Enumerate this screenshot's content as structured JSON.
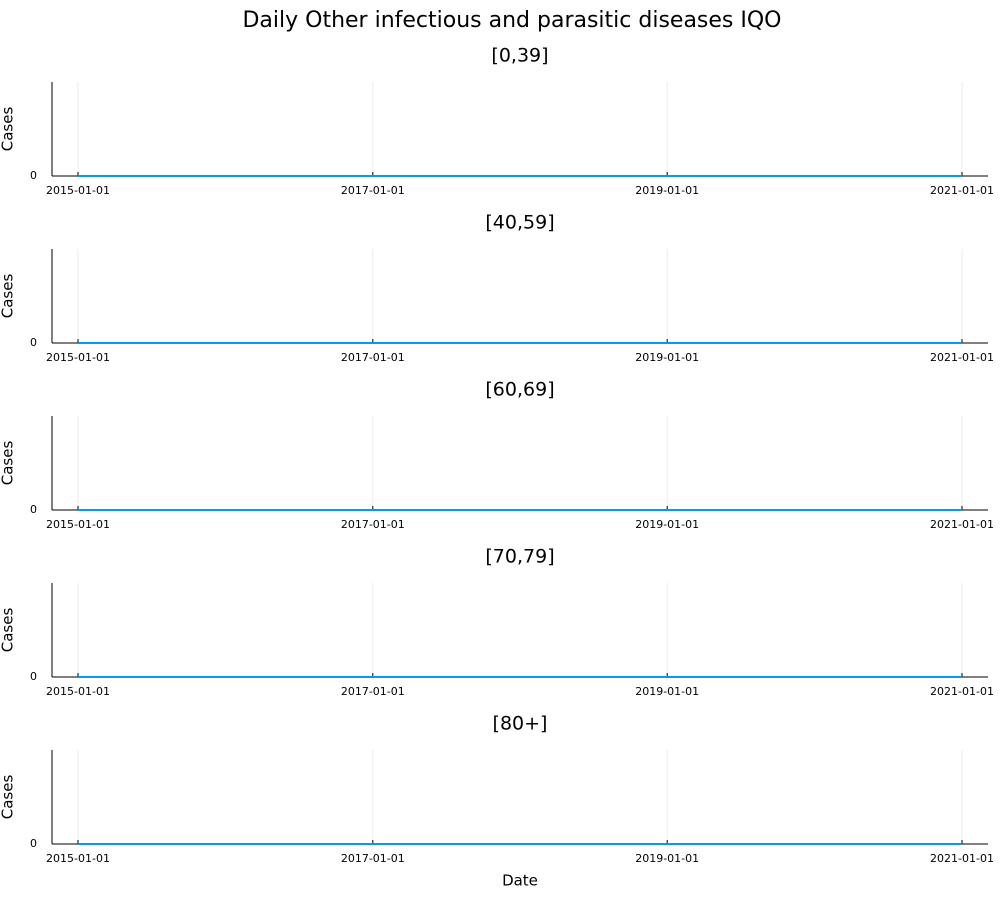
{
  "title": "Daily Other infectious and parasitic diseases IQO",
  "colors": {
    "series": "#009AFA",
    "axis": "#000000"
  },
  "chart_data": [
    {
      "type": "line",
      "title": "[0,39]",
      "xlabel": "",
      "ylabel": "Cases",
      "x_ticks": [
        "2015-01-01",
        "2017-01-01",
        "2019-01-01",
        "2021-01-01"
      ],
      "y_ticks": [
        0
      ],
      "xlim": [
        "2015-01-01",
        "2021-01-01"
      ],
      "ylim": [
        0,
        1
      ],
      "grid": true,
      "series": [
        {
          "x": [
            "2015-01-01",
            "2021-01-01"
          ],
          "values": [
            0,
            0
          ]
        }
      ]
    },
    {
      "type": "line",
      "title": "[40,59]",
      "xlabel": "",
      "ylabel": "Cases",
      "x_ticks": [
        "2015-01-01",
        "2017-01-01",
        "2019-01-01",
        "2021-01-01"
      ],
      "y_ticks": [
        0
      ],
      "xlim": [
        "2015-01-01",
        "2021-01-01"
      ],
      "ylim": [
        0,
        1
      ],
      "grid": true,
      "series": [
        {
          "x": [
            "2015-01-01",
            "2021-01-01"
          ],
          "values": [
            0,
            0
          ]
        }
      ]
    },
    {
      "type": "line",
      "title": "[60,69]",
      "xlabel": "",
      "ylabel": "Cases",
      "x_ticks": [
        "2015-01-01",
        "2017-01-01",
        "2019-01-01",
        "2021-01-01"
      ],
      "y_ticks": [
        0
      ],
      "xlim": [
        "2015-01-01",
        "2021-01-01"
      ],
      "ylim": [
        0,
        1
      ],
      "grid": true,
      "series": [
        {
          "x": [
            "2015-01-01",
            "2021-01-01"
          ],
          "values": [
            0,
            0
          ]
        }
      ]
    },
    {
      "type": "line",
      "title": "[70,79]",
      "xlabel": "",
      "ylabel": "Cases",
      "x_ticks": [
        "2015-01-01",
        "2017-01-01",
        "2019-01-01",
        "2021-01-01"
      ],
      "y_ticks": [
        0
      ],
      "xlim": [
        "2015-01-01",
        "2021-01-01"
      ],
      "ylim": [
        0,
        1
      ],
      "grid": true,
      "series": [
        {
          "x": [
            "2015-01-01",
            "2021-01-01"
          ],
          "values": [
            0,
            0
          ]
        }
      ]
    },
    {
      "type": "line",
      "title": "[80+]",
      "xlabel": "Date",
      "ylabel": "Cases",
      "x_ticks": [
        "2015-01-01",
        "2017-01-01",
        "2019-01-01",
        "2021-01-01"
      ],
      "y_ticks": [
        0
      ],
      "xlim": [
        "2015-01-01",
        "2021-01-01"
      ],
      "ylim": [
        0,
        1
      ],
      "grid": true,
      "series": [
        {
          "x": [
            "2015-01-01",
            "2021-01-01"
          ],
          "values": [
            0,
            0
          ]
        }
      ]
    }
  ]
}
